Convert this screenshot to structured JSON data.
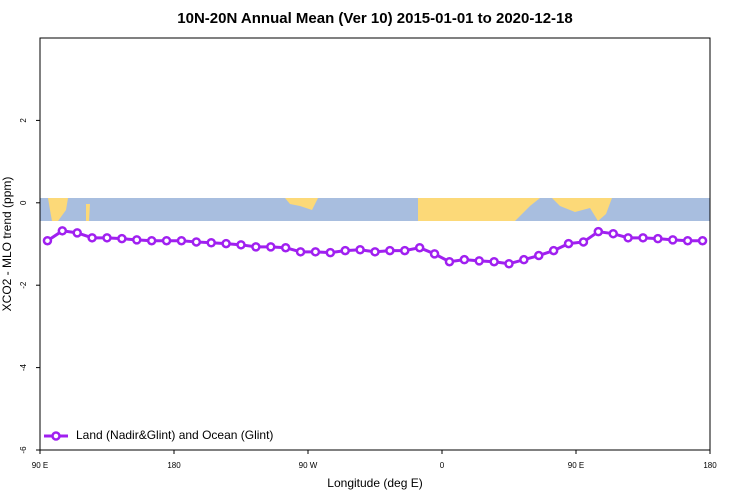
{
  "chart_data": {
    "type": "line",
    "title": "10N-20N Annual Mean (Ver 10)   2015-01-01 to 2020-12-18",
    "x_label": "Longitude (deg E)",
    "y_label": "XCO2 - MLO trend (ppm)",
    "x": [
      95,
      105,
      115,
      125,
      135,
      145,
      155,
      165,
      175,
      185,
      195,
      205,
      215,
      225,
      235,
      245,
      255,
      265,
      275,
      285,
      295,
      305,
      315,
      325,
      335,
      345,
      355,
      365,
      375,
      385,
      395,
      405,
      415,
      425,
      435,
      445,
      455,
      465,
      475,
      485,
      495,
      505,
      515,
      525,
      535
    ],
    "series": [
      {
        "name": "Land (Nadir&Glint) and Ocean (Glint)",
        "color": "#a020f0",
        "values": [
          -0.92,
          -0.68,
          -0.73,
          -0.85,
          -0.85,
          -0.87,
          -0.9,
          -0.92,
          -0.92,
          -0.92,
          -0.95,
          -0.97,
          -0.99,
          -1.02,
          -1.07,
          -1.07,
          -1.09,
          -1.19,
          -1.19,
          -1.21,
          -1.16,
          -1.14,
          -1.19,
          -1.16,
          -1.16,
          -1.09,
          -1.24,
          -1.43,
          -1.38,
          -1.41,
          -1.43,
          -1.48,
          -1.38,
          -1.28,
          -1.16,
          -0.99,
          -0.95,
          -0.7,
          -0.75,
          -0.85,
          -0.85,
          -0.87,
          -0.9,
          -0.92,
          -0.92
        ]
      }
    ],
    "xlim": [
      90,
      540
    ],
    "xticks": [
      {
        "value": 90,
        "label": "90 E"
      },
      180,
      {
        "value": 270,
        "label": "90 W"
      },
      {
        "value": 360,
        "label": "0"
      },
      {
        "value": 450,
        "label": "90 E"
      },
      {
        "value": 540,
        "label": "180"
      }
    ],
    "ylim": [
      -6,
      4
    ],
    "yticks": [
      -6,
      -4,
      -2,
      0,
      2
    ],
    "grid": false,
    "legend": "bottom-left"
  }
}
